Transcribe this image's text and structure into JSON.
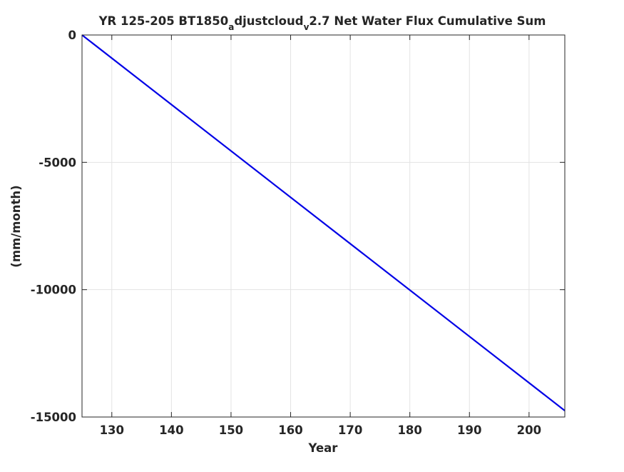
{
  "chart_data": {
    "type": "line",
    "title": {
      "part1": "YR 125-205 BT1850",
      "sub1": "a",
      "part2": "djustcloud",
      "sub2": "v",
      "part3": "2.7 Net Water Flux Cumulative Sum"
    },
    "xlabel": "Year",
    "ylabel": "(mm/month)",
    "xlim": [
      125,
      206
    ],
    "ylim": [
      -15000,
      0
    ],
    "xticks": [
      130,
      140,
      150,
      160,
      170,
      180,
      190,
      200
    ],
    "yticks": [
      0,
      -5000,
      -10000,
      -15000
    ],
    "grid": true,
    "series": [
      {
        "color": "#0000e6",
        "x": [
          125,
          206
        ],
        "y": [
          0,
          -14750
        ]
      }
    ]
  }
}
